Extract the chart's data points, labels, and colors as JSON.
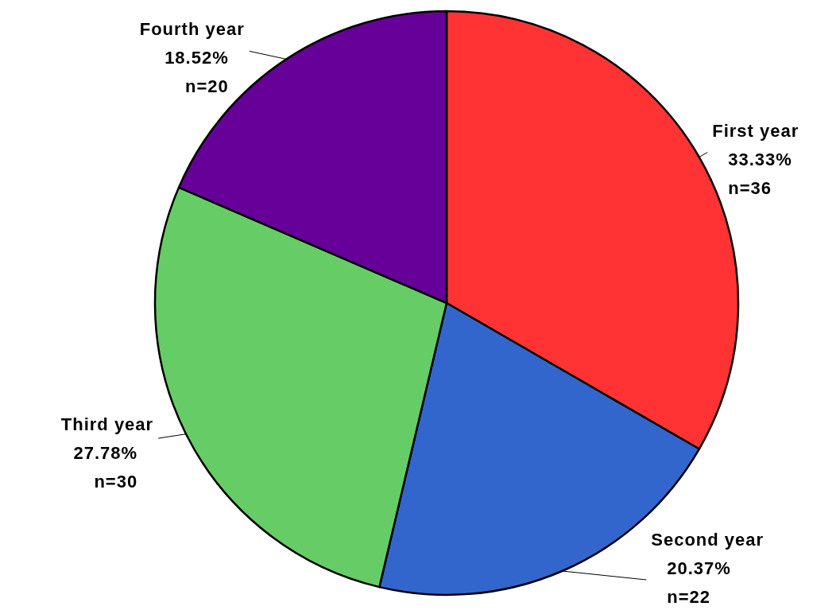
{
  "chart_data": {
    "type": "pie",
    "categories": [
      "First year",
      "Second year",
      "Third year",
      "Fourth year"
    ],
    "values": [
      36,
      22,
      30,
      20
    ],
    "value_labels": [
      "33.33%\nn=36",
      "20.37%\nn=22",
      "27.78%\nn=30",
      "18.52%\nn=20"
    ],
    "colors": [
      "#ff3333",
      "#3366cc",
      "#66cc66",
      "#660099"
    ]
  }
}
